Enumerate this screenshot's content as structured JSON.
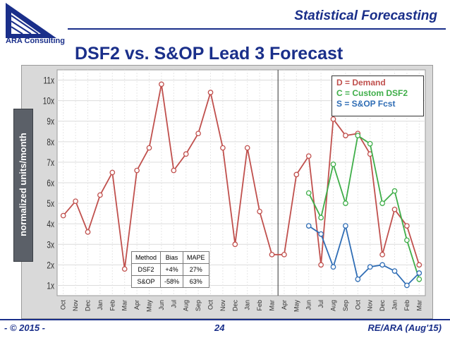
{
  "header": {
    "company": "ARA Consulting",
    "section_title": "Statistical Forecasting",
    "slide_title": "DSF2 vs. S&OP Lead 3 Forecast"
  },
  "footer": {
    "left": "- © 2015 -",
    "page": "24",
    "right": "RE/ARA (Aug'15)"
  },
  "colors": {
    "demand": "#c0504d",
    "custom_dsf2": "#3fae49",
    "sop": "#2f6db5",
    "brand": "#1a2f8a"
  },
  "legend": [
    {
      "label": "D = Demand",
      "color": "#c0504d"
    },
    {
      "label": "C = Custom DSF2",
      "color": "#3fae49"
    },
    {
      "label": "S = S&OP Fcst",
      "color": "#2f6db5"
    }
  ],
  "stats_table": {
    "headers": [
      "Method",
      "Bias",
      "MAPE"
    ],
    "rows": [
      [
        "DSF2",
        "+4%",
        "27%"
      ],
      [
        "S&OP",
        "-58%",
        "63%"
      ]
    ]
  },
  "chart_data": {
    "type": "line",
    "title": "DSF2 vs. S&OP Lead 3 Forecast",
    "xlabel": "",
    "ylabel": "normalized units/month",
    "ylim": [
      0.5,
      11.5
    ],
    "grid": true,
    "legend_position": "top-right",
    "y_ticks": [
      "1x",
      "2x",
      "3x",
      "4x",
      "5x",
      "6x",
      "7x",
      "8x",
      "9x",
      "10x",
      "11x"
    ],
    "categories": [
      "Oct",
      "Nov",
      "Dec",
      "Jan",
      "Feb",
      "Mar",
      "Apr",
      "May",
      "Jun",
      "Jul",
      "Aug",
      "Sep",
      "Oct",
      "Nov",
      "Dec",
      "Jan",
      "Feb",
      "Mar",
      "Apr",
      "May",
      "Jun",
      "Jul",
      "Aug",
      "Sep",
      "Oct",
      "Nov",
      "Dec",
      "Jan",
      "Feb",
      "Mar"
    ],
    "divider_after_index": 17,
    "series": [
      {
        "name": "D = Demand",
        "color": "#c0504d",
        "values": [
          4.4,
          5.1,
          3.6,
          5.4,
          6.5,
          1.8,
          6.6,
          7.7,
          10.8,
          6.6,
          7.4,
          8.4,
          10.4,
          7.7,
          3.0,
          7.7,
          4.6,
          2.5,
          2.5,
          6.4,
          7.3,
          2.0,
          9.1,
          8.3,
          8.4,
          7.4,
          2.5,
          4.7,
          3.9,
          2.0
        ]
      },
      {
        "name": "C = Custom DSF2",
        "color": "#3fae49",
        "values": [
          null,
          null,
          null,
          null,
          null,
          null,
          null,
          null,
          null,
          null,
          null,
          null,
          null,
          null,
          null,
          null,
          null,
          null,
          null,
          null,
          5.5,
          4.3,
          6.9,
          5.0,
          8.3,
          7.9,
          5.0,
          5.6,
          3.2,
          1.3
        ]
      },
      {
        "name": "S = S&OP Fcst",
        "color": "#2f6db5",
        "values": [
          null,
          null,
          null,
          null,
          null,
          null,
          null,
          null,
          null,
          null,
          null,
          null,
          null,
          null,
          null,
          null,
          null,
          null,
          null,
          null,
          3.9,
          3.5,
          1.9,
          3.9,
          1.3,
          1.9,
          2.0,
          1.7,
          1.0,
          1.6
        ]
      }
    ]
  }
}
